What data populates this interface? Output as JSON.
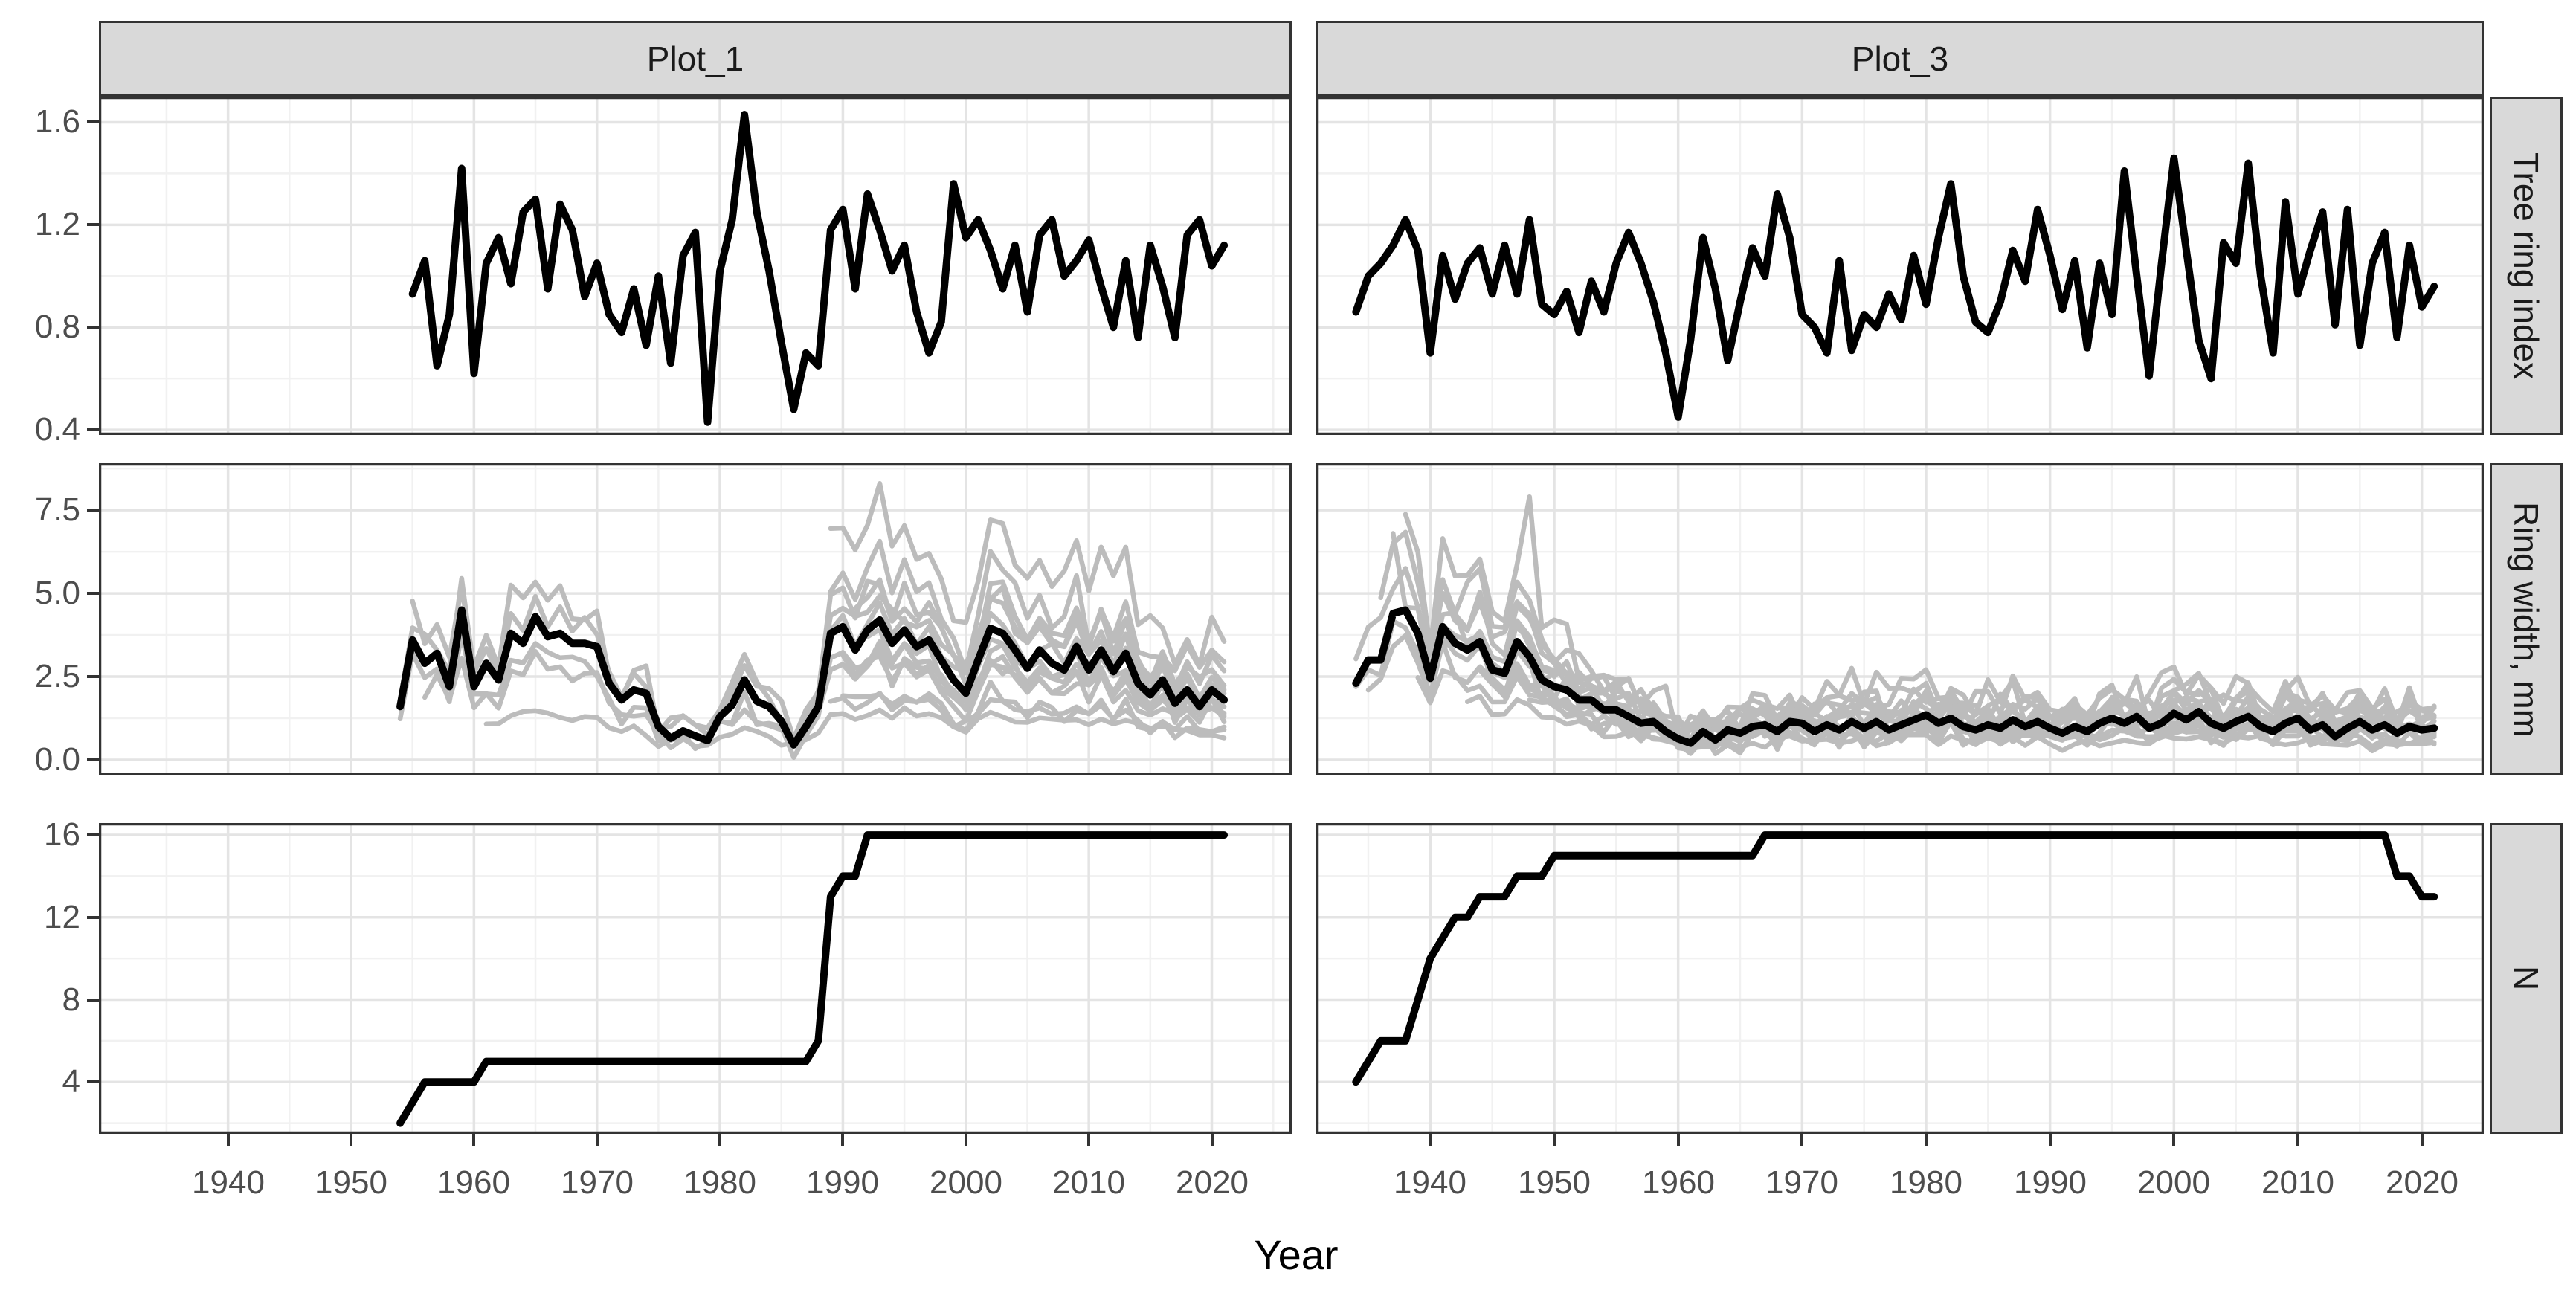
{
  "figure": {
    "facet_columns": [
      "Plot_1",
      "Plot_3"
    ],
    "facet_rows": [
      "Tree ring index",
      "Ring width, mm",
      "N"
    ],
    "xlabel": "Year",
    "x_tick_labels": [
      "1940",
      "1950",
      "1960",
      "1970",
      "1980",
      "1990",
      "2000",
      "2010",
      "2020"
    ],
    "x_ticks": [
      1940,
      1950,
      1960,
      1970,
      1980,
      1990,
      2000,
      2010,
      2020
    ],
    "colors": {
      "main_line": "#000000",
      "tree_line": "#bcbcbc",
      "strip_fill": "#d9d9d9",
      "strip_border": "#333333",
      "panel_border": "#333333",
      "grid_major": "#e4e4e4",
      "grid_minor": "#f1f1f1",
      "axis_text": "#4d4d4d"
    }
  },
  "chart_data": [
    {
      "facet_col": "Plot_1",
      "facet_row": "Tree ring index",
      "type": "line",
      "ylim": [
        0.38,
        1.7
      ],
      "yticks": [
        0.4,
        0.8,
        1.2,
        1.6
      ],
      "ytick_labels": [
        "0.4",
        "0.8",
        "1.2",
        "1.6"
      ],
      "mean_series": {
        "name": "tree-ring-index-chronology",
        "start": 1955,
        "values": [
          0.93,
          1.06,
          0.65,
          0.85,
          1.42,
          0.62,
          1.05,
          1.15,
          0.97,
          1.25,
          1.3,
          0.95,
          1.28,
          1.18,
          0.92,
          1.05,
          0.85,
          0.78,
          0.95,
          0.73,
          1.0,
          0.66,
          1.08,
          1.17,
          0.43,
          1.02,
          1.22,
          1.63,
          1.25,
          1.02,
          0.74,
          0.48,
          0.7,
          0.65,
          1.18,
          1.26,
          0.95,
          1.32,
          1.18,
          1.02,
          1.12,
          0.86,
          0.7,
          0.82,
          1.36,
          1.15,
          1.22,
          1.1,
          0.95,
          1.12,
          0.86,
          1.16,
          1.22,
          1.0,
          1.06,
          1.14,
          0.96,
          0.8,
          1.06,
          0.76,
          1.12,
          0.96,
          0.76,
          1.16,
          1.22,
          1.04,
          1.12
        ]
      },
      "tree_params": []
    },
    {
      "facet_col": "Plot_3",
      "facet_row": "Tree ring index",
      "type": "line",
      "ylim": [
        0.38,
        1.7
      ],
      "yticks": [
        0.4,
        0.8,
        1.2,
        1.6
      ],
      "ytick_labels": [
        "0.4",
        "0.8",
        "1.2",
        "1.6"
      ],
      "mean_series": {
        "name": "tree-ring-index-chronology",
        "start": 1934,
        "values": [
          0.86,
          1.0,
          1.05,
          1.12,
          1.22,
          1.1,
          0.7,
          1.08,
          0.91,
          1.05,
          1.11,
          0.93,
          1.12,
          0.93,
          1.22,
          0.89,
          0.85,
          0.94,
          0.78,
          0.98,
          0.86,
          1.05,
          1.17,
          1.05,
          0.9,
          0.7,
          0.45,
          0.75,
          1.15,
          0.95,
          0.67,
          0.9,
          1.11,
          1.0,
          1.32,
          1.15,
          0.85,
          0.8,
          0.7,
          1.06,
          0.71,
          0.85,
          0.8,
          0.93,
          0.83,
          1.08,
          0.89,
          1.15,
          1.36,
          1.0,
          0.82,
          0.78,
          0.9,
          1.1,
          0.98,
          1.26,
          1.08,
          0.87,
          1.06,
          0.72,
          1.05,
          0.85,
          1.41,
          1.0,
          0.61,
          1.05,
          1.46,
          1.1,
          0.75,
          0.6,
          1.13,
          1.05,
          1.44,
          1.0,
          0.7,
          1.29,
          0.93,
          1.1,
          1.25,
          0.81,
          1.26,
          0.73,
          1.05,
          1.17,
          0.76,
          1.12,
          0.88,
          0.96
        ]
      },
      "tree_params": []
    },
    {
      "facet_col": "Plot_1",
      "facet_row": "Ring width, mm",
      "type": "line",
      "ylim": [
        -0.47,
        8.91
      ],
      "yticks": [
        0.0,
        2.5,
        5.0,
        7.5
      ],
      "ytick_labels": [
        "0.0",
        "2.5",
        "5.0",
        "7.5"
      ],
      "mean_series": {
        "name": "mean-ring-width",
        "start": 1954,
        "values": [
          1.6,
          3.6,
          2.9,
          3.2,
          2.2,
          4.5,
          2.2,
          2.9,
          2.4,
          3.8,
          3.5,
          4.3,
          3.7,
          3.8,
          3.5,
          3.5,
          3.4,
          2.3,
          1.8,
          2.1,
          2.0,
          1.0,
          0.65,
          0.87,
          0.72,
          0.58,
          1.3,
          1.65,
          2.4,
          1.76,
          1.6,
          1.16,
          0.45,
          1.0,
          1.6,
          3.8,
          4.0,
          3.3,
          3.9,
          4.2,
          3.5,
          3.9,
          3.4,
          3.6,
          3.0,
          2.4,
          2.0,
          3.0,
          3.95,
          3.8,
          3.3,
          2.75,
          3.3,
          2.9,
          2.7,
          3.4,
          2.7,
          3.3,
          2.65,
          3.2,
          2.3,
          1.95,
          2.4,
          1.7,
          2.1,
          1.6,
          2.1,
          1.8
        ]
      },
      "tree_params": [
        {
          "start": 1954,
          "scale": 1.15,
          "bias": 0.1,
          "amp": 0.55,
          "seed": 11,
          "spikes": {}
        },
        {
          "start": 1954,
          "scale": 0.85,
          "bias": -0.1,
          "amp": 0.45,
          "seed": 22,
          "spikes": {}
        },
        {
          "start": 1955,
          "scale": 1.3,
          "bias": 0.0,
          "amp": 0.6,
          "seed": 33,
          "spikes": {
            "1959": 5.2
          }
        },
        {
          "start": 1956,
          "scale": 0.7,
          "bias": 0.1,
          "amp": 0.4,
          "seed": 44,
          "spikes": {}
        },
        {
          "start": 1961,
          "scale": 0.3,
          "bias": 0.25,
          "amp": 0.2,
          "seed": 66,
          "spikes": {}
        },
        {
          "start": 1988,
          "scale": 1.0,
          "bias": 0.3,
          "amp": 0.5,
          "seed": 55,
          "spikes": {}
        },
        {
          "start": 1989,
          "scale": 1.75,
          "bias": 0.3,
          "amp": 0.8,
          "seed": 77,
          "spikes": {
            "1993": 8.3
          }
        },
        {
          "start": 1989,
          "scale": 1.45,
          "bias": 0.1,
          "amp": 0.7,
          "seed": 88,
          "spikes": {}
        },
        {
          "start": 1989,
          "scale": 0.45,
          "bias": 0.05,
          "amp": 0.25,
          "seed": 133,
          "spikes": {}
        },
        {
          "start": 1990,
          "scale": 0.55,
          "bias": -0.1,
          "amp": 0.3,
          "seed": 99,
          "spikes": {}
        },
        {
          "start": 1990,
          "scale": 0.8,
          "bias": -0.2,
          "amp": 0.4,
          "seed": 111,
          "spikes": {}
        },
        {
          "start": 1990,
          "scale": 0.65,
          "bias": 0.4,
          "amp": 0.35,
          "seed": 155,
          "spikes": {}
        },
        {
          "start": 1991,
          "scale": 1.2,
          "bias": 0.2,
          "amp": 0.5,
          "seed": 122,
          "spikes": {}
        },
        {
          "start": 1992,
          "scale": 1.0,
          "bias": -0.3,
          "amp": 0.5,
          "seed": 144,
          "spikes": {}
        }
      ]
    },
    {
      "facet_col": "Plot_3",
      "facet_row": "Ring width, mm",
      "type": "line",
      "ylim": [
        -0.47,
        8.91
      ],
      "yticks": [
        0.0,
        2.5,
        5.0,
        7.5
      ],
      "ytick_labels": [
        "0.0",
        "2.5",
        "5.0",
        "7.5"
      ],
      "mean_series": {
        "name": "mean-ring-width",
        "start": 1934,
        "values": [
          2.3,
          3.0,
          3.0,
          4.4,
          4.5,
          3.8,
          2.45,
          4.0,
          3.5,
          3.3,
          3.55,
          2.7,
          2.6,
          3.55,
          3.1,
          2.4,
          2.2,
          2.1,
          1.8,
          1.8,
          1.5,
          1.5,
          1.3,
          1.1,
          1.15,
          0.85,
          0.63,
          0.5,
          0.85,
          0.6,
          0.9,
          0.8,
          1.0,
          1.05,
          0.85,
          1.15,
          1.1,
          0.85,
          1.05,
          0.9,
          1.15,
          0.95,
          1.15,
          0.9,
          1.05,
          1.2,
          1.35,
          1.1,
          1.25,
          1.0,
          0.9,
          1.05,
          0.95,
          1.2,
          1.0,
          1.15,
          0.95,
          0.8,
          1.0,
          0.85,
          1.1,
          1.25,
          1.1,
          1.3,
          0.95,
          1.1,
          1.4,
          1.2,
          1.45,
          1.1,
          0.95,
          1.15,
          1.3,
          1.0,
          0.85,
          1.1,
          1.25,
          0.9,
          1.05,
          0.7,
          0.95,
          1.15,
          0.9,
          1.05,
          0.8,
          1.0,
          0.9,
          0.95
        ]
      },
      "tree_params": [
        {
          "start": 1934,
          "scale": 1.25,
          "bias": 0.15,
          "amp": 0.6,
          "seed": 21,
          "spikes": {}
        },
        {
          "start": 1934,
          "scale": 0.9,
          "bias": -0.15,
          "amp": 0.5,
          "seed": 153,
          "spikes": {}
        },
        {
          "start": 1935,
          "scale": 0.8,
          "bias": -0.05,
          "amp": 0.45,
          "seed": 43,
          "spikes": {}
        },
        {
          "start": 1936,
          "scale": 1.4,
          "bias": 0.1,
          "amp": 0.75,
          "seed": 164,
          "spikes": {}
        },
        {
          "start": 1937,
          "scale": 1.05,
          "bias": 0.3,
          "amp": 0.55,
          "seed": 54,
          "spikes": {
            "1937": 6.8
          }
        },
        {
          "start": 1938,
          "scale": 1.55,
          "bias": 0.2,
          "amp": 0.9,
          "seed": 32,
          "spikes": {
            "1948": 7.9
          }
        },
        {
          "start": 1939,
          "scale": 0.65,
          "bias": 0.05,
          "amp": 0.35,
          "seed": 65,
          "spikes": {}
        },
        {
          "start": 1940,
          "scale": 1.15,
          "bias": -0.1,
          "amp": 0.6,
          "seed": 76,
          "spikes": {}
        },
        {
          "start": 1941,
          "scale": 0.9,
          "bias": 0.2,
          "amp": 0.5,
          "seed": 87,
          "spikes": {}
        },
        {
          "start": 1942,
          "scale": 1.35,
          "bias": 0.0,
          "amp": 0.7,
          "seed": 98,
          "spikes": {}
        },
        {
          "start": 1943,
          "scale": 0.5,
          "bias": 0.05,
          "amp": 0.25,
          "seed": 186,
          "spikes": {}
        },
        {
          "start": 1944,
          "scale": 0.75,
          "bias": 0.15,
          "amp": 0.4,
          "seed": 109,
          "spikes": {}
        },
        {
          "start": 1947,
          "scale": 1.1,
          "bias": 0.1,
          "amp": 0.5,
          "seed": 120,
          "spikes": {}
        },
        {
          "start": 1948,
          "scale": 0.6,
          "bias": 0.2,
          "amp": 0.3,
          "seed": 131,
          "spikes": {}
        },
        {
          "start": 1950,
          "scale": 1.2,
          "bias": 0.25,
          "amp": 0.6,
          "seed": 142,
          "spikes": {}
        },
        {
          "start": 1968,
          "scale": 1.5,
          "bias": 0.3,
          "amp": 0.7,
          "seed": 175,
          "spikes": {}
        }
      ]
    },
    {
      "facet_col": "Plot_1",
      "facet_row": "N",
      "type": "line",
      "ylim": [
        1.48,
        16.58
      ],
      "yticks": [
        4,
        8,
        12,
        16
      ],
      "ytick_labels": [
        "4",
        "8",
        "12",
        "16"
      ],
      "mean_series": {
        "name": "sample-depth",
        "start": 1954,
        "values": [
          2,
          3,
          4,
          4,
          4,
          4,
          4,
          5,
          5,
          5,
          5,
          5,
          5,
          5,
          5,
          5,
          5,
          5,
          5,
          5,
          5,
          5,
          5,
          5,
          5,
          5,
          5,
          5,
          5,
          5,
          5,
          5,
          5,
          5,
          6,
          13,
          14,
          14,
          16,
          16,
          16,
          16,
          16,
          16,
          16,
          16,
          16,
          16,
          16,
          16,
          16,
          16,
          16,
          16,
          16,
          16,
          16,
          16,
          16,
          16,
          16,
          16,
          16,
          16,
          16,
          16,
          16,
          16
        ]
      },
      "tree_params": []
    },
    {
      "facet_col": "Plot_3",
      "facet_row": "N",
      "type": "line",
      "ylim": [
        1.48,
        16.58
      ],
      "yticks": [
        4,
        8,
        12,
        16
      ],
      "ytick_labels": [
        "4",
        "8",
        "12",
        "16"
      ],
      "mean_series": {
        "name": "sample-depth",
        "start": 1934,
        "values": [
          4,
          5,
          6,
          6,
          6,
          8,
          10,
          11,
          12,
          12,
          13,
          13,
          13,
          14,
          14,
          14,
          15,
          15,
          15,
          15,
          15,
          15,
          15,
          15,
          15,
          15,
          15,
          15,
          15,
          15,
          15,
          15,
          15,
          16,
          16,
          16,
          16,
          16,
          16,
          16,
          16,
          16,
          16,
          16,
          16,
          16,
          16,
          16,
          16,
          16,
          16,
          16,
          16,
          16,
          16,
          16,
          16,
          16,
          16,
          16,
          16,
          16,
          16,
          16,
          16,
          16,
          16,
          16,
          16,
          16,
          16,
          16,
          16,
          16,
          16,
          16,
          16,
          16,
          16,
          16,
          16,
          16,
          16,
          16,
          14,
          14,
          13,
          13
        ]
      },
      "tree_params": []
    }
  ]
}
